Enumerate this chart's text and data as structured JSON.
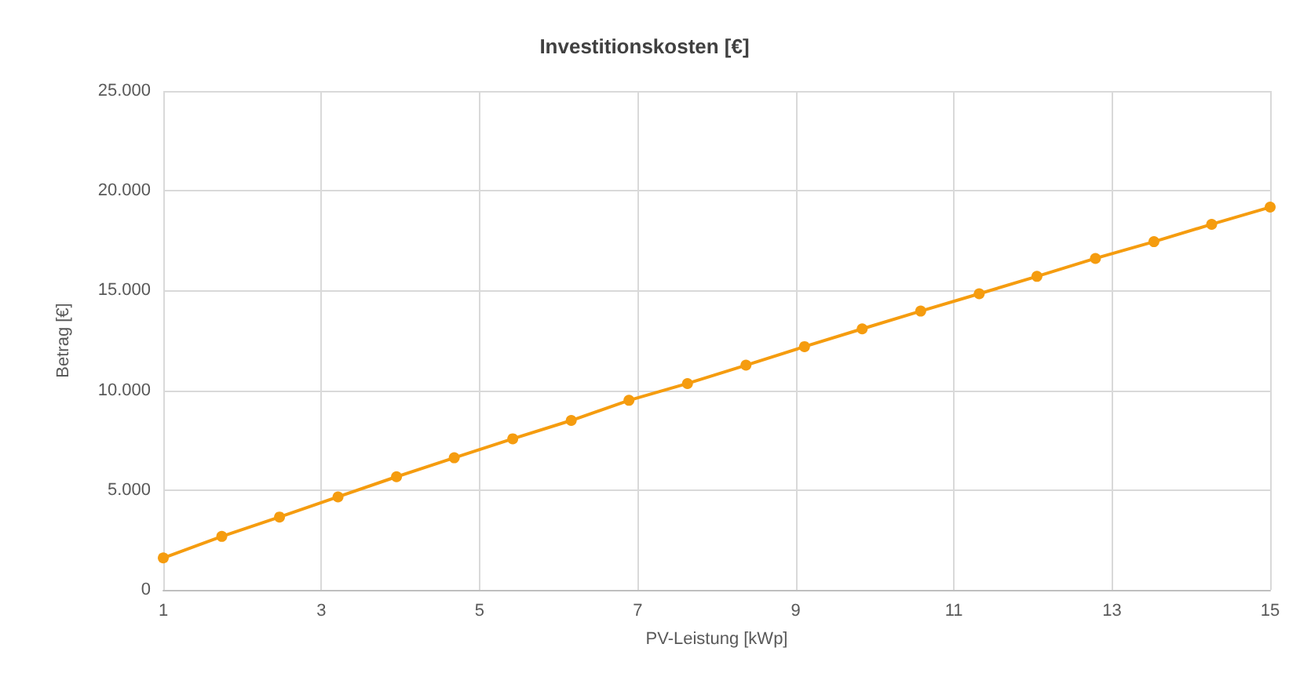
{
  "chart_data": {
    "type": "line",
    "title": "Investitionskosten [€]",
    "xlabel": "PV-Leistung [kWp]",
    "ylabel": "Betrag [€]",
    "x": [
      1,
      1.74,
      2.47,
      3.21,
      3.95,
      4.68,
      5.42,
      6.16,
      6.89,
      7.63,
      8.37,
      9.11,
      9.84,
      10.58,
      11.32,
      12.05,
      12.79,
      13.53,
      14.26,
      15
    ],
    "series": [
      {
        "color": "#f59c0f",
        "values": [
          1600,
          2680,
          3650,
          4660,
          5670,
          6620,
          7570,
          8490,
          9500,
          10340,
          11260,
          12190,
          13080,
          13970,
          14840,
          15710,
          16610,
          17450,
          18320,
          19180
        ]
      }
    ],
    "xlim": [
      1,
      15
    ],
    "xticks": [
      1,
      3,
      5,
      7,
      9,
      11,
      13,
      15
    ],
    "ylim": [
      0,
      25000
    ],
    "yticks": [
      0,
      {
        "value": 5000,
        "label": "5.000"
      },
      {
        "value": 10000,
        "label": "10.000"
      },
      {
        "value": 15000,
        "label": "15.000"
      },
      {
        "value": 20000,
        "label": "20.000"
      },
      {
        "value": 25000,
        "label": "25.000"
      }
    ],
    "grid": true,
    "marker": "circle",
    "line_style": "solid"
  }
}
